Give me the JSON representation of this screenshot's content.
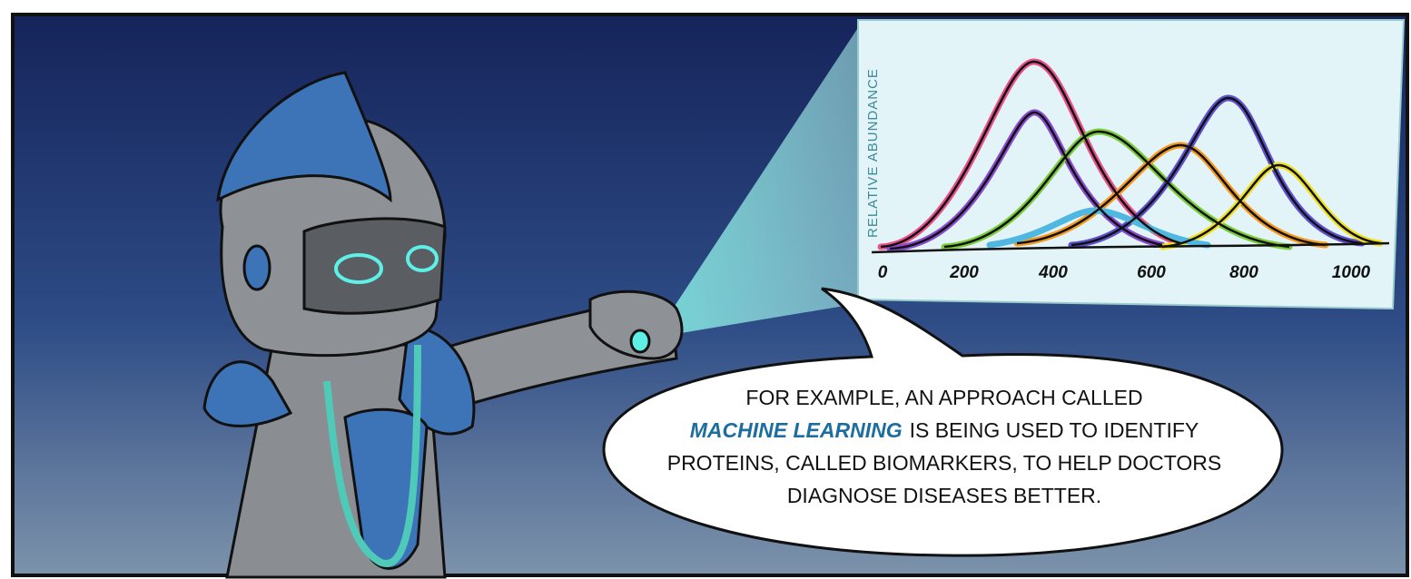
{
  "panel": {
    "inset": {
      "y_axis_label": "RELATIVE ABUNDANCE",
      "x_ticks": [
        "0",
        "200",
        "400",
        "600",
        "800",
        "1000"
      ]
    },
    "speech": {
      "emphasis": "MACHINE LEARNING",
      "lines": [
        "FOR EXAMPLE, AN APPROACH CALLED",
        "IS BEING USED TO IDENTIFY",
        "PROTEINS, CALLED BIOMARKERS, TO HELP DOCTORS",
        "DIAGNOSE DISEASES BETTER."
      ]
    }
  }
}
